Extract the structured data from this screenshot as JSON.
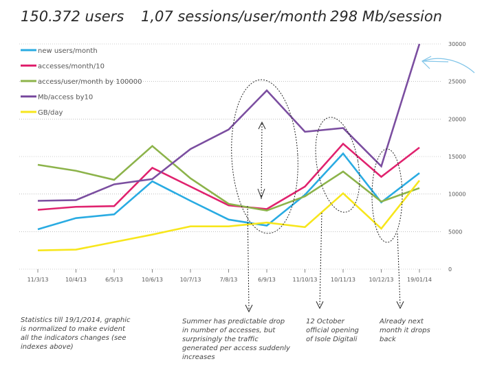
{
  "header": {
    "users": "150.372 users",
    "sessions": "1,07 sessions/user/month",
    "mb": "298 Mb/session"
  },
  "notes": {
    "left": "Statistics till 19/1/2014, graphic is normalized to make evident all the indicators changes (see indexes above)",
    "summer": "Summer has predictable drop in number of accesses, but surprisingly the traffic generated per access suddenly increases",
    "october": "12 October official opening of Isole Digitali",
    "next": "Already next month it drops back"
  },
  "chart_data": {
    "type": "line",
    "categories": [
      "11/3/13",
      "10/4/13",
      "6/5/13",
      "10/6/13",
      "10/7/13",
      "7/8/13",
      "6/9/13",
      "11/10/13",
      "10/11/13",
      "10/12/13",
      "19/01/14"
    ],
    "ylim": [
      0,
      30000
    ],
    "yticks": [
      0,
      5000,
      10000,
      15000,
      20000,
      25000,
      30000
    ],
    "y_axis_side": "right",
    "grid": "horizontal dotted",
    "legend": "top-left",
    "series": [
      {
        "name": "new users/month",
        "color": "#29abe2",
        "values": [
          5300,
          6800,
          7300,
          11700,
          9100,
          6600,
          5800,
          9900,
          15400,
          8900,
          12800
        ]
      },
      {
        "name": "accesses/month/10",
        "color": "#e0226e",
        "values": [
          7900,
          8300,
          8400,
          13500,
          11000,
          8500,
          8000,
          11000,
          16700,
          12300,
          16200
        ]
      },
      {
        "name": "access/user/month by 100000",
        "color": "#8cb34a",
        "values": [
          13900,
          13100,
          11900,
          16400,
          12100,
          8700,
          7800,
          9700,
          13000,
          9000,
          10800
        ]
      },
      {
        "name": "Mb/access by10",
        "color": "#7b4ea0",
        "values": [
          9100,
          9200,
          11300,
          12000,
          16000,
          18600,
          23800,
          18300,
          18800,
          13700,
          30000
        ]
      },
      {
        "name": "GB/day",
        "color": "#f7e61c",
        "values": [
          2500,
          2600,
          3600,
          4600,
          5700,
          5700,
          6200,
          5600,
          10100,
          5400,
          11800
        ]
      }
    ]
  }
}
